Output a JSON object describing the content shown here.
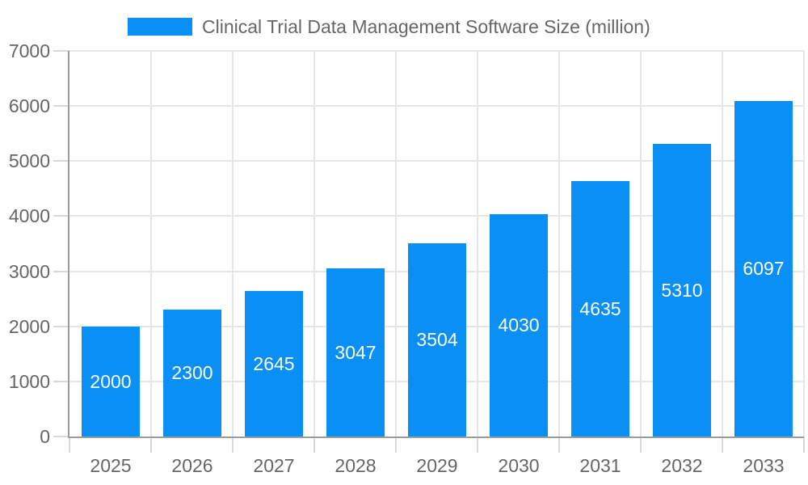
{
  "chart_data": {
    "type": "bar",
    "title": "Clinical Trial Data Management Software Size (million)",
    "categories": [
      "2025",
      "2026",
      "2027",
      "2028",
      "2029",
      "2030",
      "2031",
      "2032",
      "2033"
    ],
    "values": [
      2000,
      2300,
      2645,
      3047,
      3504,
      4030,
      4635,
      5310,
      6097
    ],
    "xlabel": "",
    "ylabel": "",
    "ylim": [
      0,
      7000
    ],
    "ytick_step": 1000,
    "ytick_labels": [
      "0",
      "1000",
      "2000",
      "3000",
      "4000",
      "5000",
      "6000",
      "7000"
    ],
    "legend_position": "top-center",
    "grid": true,
    "value_label_position": "inside-center",
    "colors": {
      "bar": "#0a90f5",
      "grid": "#e6e6e6",
      "axis": "#9c9c9c",
      "tick": "#d9d9d9",
      "label": "#666666",
      "value_label": "#ffffff",
      "background": "#ffffff"
    }
  }
}
